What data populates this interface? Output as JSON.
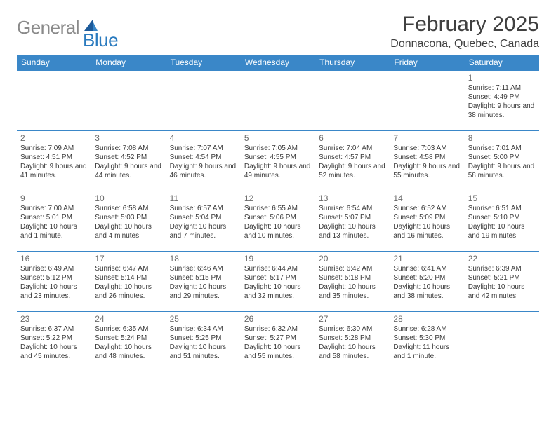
{
  "logo": {
    "text_gray": "General",
    "text_blue": "Blue"
  },
  "title": "February 2025",
  "location": "Donnacona, Quebec, Canada",
  "header_bg": "#3a87c8",
  "border_color": "#3a87c8",
  "weekdays": [
    "Sunday",
    "Monday",
    "Tuesday",
    "Wednesday",
    "Thursday",
    "Friday",
    "Saturday"
  ],
  "weeks": [
    [
      {
        "day": "",
        "sunrise": "",
        "sunset": "",
        "daylight": ""
      },
      {
        "day": "",
        "sunrise": "",
        "sunset": "",
        "daylight": ""
      },
      {
        "day": "",
        "sunrise": "",
        "sunset": "",
        "daylight": ""
      },
      {
        "day": "",
        "sunrise": "",
        "sunset": "",
        "daylight": ""
      },
      {
        "day": "",
        "sunrise": "",
        "sunset": "",
        "daylight": ""
      },
      {
        "day": "",
        "sunrise": "",
        "sunset": "",
        "daylight": ""
      },
      {
        "day": "1",
        "sunrise": "Sunrise: 7:11 AM",
        "sunset": "Sunset: 4:49 PM",
        "daylight": "Daylight: 9 hours and 38 minutes."
      }
    ],
    [
      {
        "day": "2",
        "sunrise": "Sunrise: 7:09 AM",
        "sunset": "Sunset: 4:51 PM",
        "daylight": "Daylight: 9 hours and 41 minutes."
      },
      {
        "day": "3",
        "sunrise": "Sunrise: 7:08 AM",
        "sunset": "Sunset: 4:52 PM",
        "daylight": "Daylight: 9 hours and 44 minutes."
      },
      {
        "day": "4",
        "sunrise": "Sunrise: 7:07 AM",
        "sunset": "Sunset: 4:54 PM",
        "daylight": "Daylight: 9 hours and 46 minutes."
      },
      {
        "day": "5",
        "sunrise": "Sunrise: 7:05 AM",
        "sunset": "Sunset: 4:55 PM",
        "daylight": "Daylight: 9 hours and 49 minutes."
      },
      {
        "day": "6",
        "sunrise": "Sunrise: 7:04 AM",
        "sunset": "Sunset: 4:57 PM",
        "daylight": "Daylight: 9 hours and 52 minutes."
      },
      {
        "day": "7",
        "sunrise": "Sunrise: 7:03 AM",
        "sunset": "Sunset: 4:58 PM",
        "daylight": "Daylight: 9 hours and 55 minutes."
      },
      {
        "day": "8",
        "sunrise": "Sunrise: 7:01 AM",
        "sunset": "Sunset: 5:00 PM",
        "daylight": "Daylight: 9 hours and 58 minutes."
      }
    ],
    [
      {
        "day": "9",
        "sunrise": "Sunrise: 7:00 AM",
        "sunset": "Sunset: 5:01 PM",
        "daylight": "Daylight: 10 hours and 1 minute."
      },
      {
        "day": "10",
        "sunrise": "Sunrise: 6:58 AM",
        "sunset": "Sunset: 5:03 PM",
        "daylight": "Daylight: 10 hours and 4 minutes."
      },
      {
        "day": "11",
        "sunrise": "Sunrise: 6:57 AM",
        "sunset": "Sunset: 5:04 PM",
        "daylight": "Daylight: 10 hours and 7 minutes."
      },
      {
        "day": "12",
        "sunrise": "Sunrise: 6:55 AM",
        "sunset": "Sunset: 5:06 PM",
        "daylight": "Daylight: 10 hours and 10 minutes."
      },
      {
        "day": "13",
        "sunrise": "Sunrise: 6:54 AM",
        "sunset": "Sunset: 5:07 PM",
        "daylight": "Daylight: 10 hours and 13 minutes."
      },
      {
        "day": "14",
        "sunrise": "Sunrise: 6:52 AM",
        "sunset": "Sunset: 5:09 PM",
        "daylight": "Daylight: 10 hours and 16 minutes."
      },
      {
        "day": "15",
        "sunrise": "Sunrise: 6:51 AM",
        "sunset": "Sunset: 5:10 PM",
        "daylight": "Daylight: 10 hours and 19 minutes."
      }
    ],
    [
      {
        "day": "16",
        "sunrise": "Sunrise: 6:49 AM",
        "sunset": "Sunset: 5:12 PM",
        "daylight": "Daylight: 10 hours and 23 minutes."
      },
      {
        "day": "17",
        "sunrise": "Sunrise: 6:47 AM",
        "sunset": "Sunset: 5:14 PM",
        "daylight": "Daylight: 10 hours and 26 minutes."
      },
      {
        "day": "18",
        "sunrise": "Sunrise: 6:46 AM",
        "sunset": "Sunset: 5:15 PM",
        "daylight": "Daylight: 10 hours and 29 minutes."
      },
      {
        "day": "19",
        "sunrise": "Sunrise: 6:44 AM",
        "sunset": "Sunset: 5:17 PM",
        "daylight": "Daylight: 10 hours and 32 minutes."
      },
      {
        "day": "20",
        "sunrise": "Sunrise: 6:42 AM",
        "sunset": "Sunset: 5:18 PM",
        "daylight": "Daylight: 10 hours and 35 minutes."
      },
      {
        "day": "21",
        "sunrise": "Sunrise: 6:41 AM",
        "sunset": "Sunset: 5:20 PM",
        "daylight": "Daylight: 10 hours and 38 minutes."
      },
      {
        "day": "22",
        "sunrise": "Sunrise: 6:39 AM",
        "sunset": "Sunset: 5:21 PM",
        "daylight": "Daylight: 10 hours and 42 minutes."
      }
    ],
    [
      {
        "day": "23",
        "sunrise": "Sunrise: 6:37 AM",
        "sunset": "Sunset: 5:22 PM",
        "daylight": "Daylight: 10 hours and 45 minutes."
      },
      {
        "day": "24",
        "sunrise": "Sunrise: 6:35 AM",
        "sunset": "Sunset: 5:24 PM",
        "daylight": "Daylight: 10 hours and 48 minutes."
      },
      {
        "day": "25",
        "sunrise": "Sunrise: 6:34 AM",
        "sunset": "Sunset: 5:25 PM",
        "daylight": "Daylight: 10 hours and 51 minutes."
      },
      {
        "day": "26",
        "sunrise": "Sunrise: 6:32 AM",
        "sunset": "Sunset: 5:27 PM",
        "daylight": "Daylight: 10 hours and 55 minutes."
      },
      {
        "day": "27",
        "sunrise": "Sunrise: 6:30 AM",
        "sunset": "Sunset: 5:28 PM",
        "daylight": "Daylight: 10 hours and 58 minutes."
      },
      {
        "day": "28",
        "sunrise": "Sunrise: 6:28 AM",
        "sunset": "Sunset: 5:30 PM",
        "daylight": "Daylight: 11 hours and 1 minute."
      },
      {
        "day": "",
        "sunrise": "",
        "sunset": "",
        "daylight": ""
      }
    ]
  ]
}
